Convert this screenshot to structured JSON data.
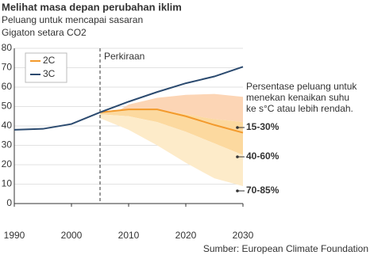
{
  "chart_data": {
    "type": "line",
    "title": "Melihat masa depan perubahan iklim",
    "subtitle": "Peluang untuk mencapai sasaran",
    "y_label": "Gigaton setara CO2",
    "forecast_label": "Perkiraan",
    "forecast_x": 2005,
    "annotation": [
      "Persentase peluang untuk",
      "menekan kenaikan suhu",
      "ke s°C atau lebih rendah."
    ],
    "source": "Sumber: European Climate Foundation",
    "xlim": [
      1990,
      2030
    ],
    "xticks": [
      1990,
      2000,
      2010,
      2020,
      2030
    ],
    "ylim": [
      0,
      80
    ],
    "yticks": [
      0,
      10,
      20,
      30,
      40,
      50,
      60,
      70,
      80
    ],
    "grid": true,
    "legend": "upper left",
    "series": [
      {
        "name": "2C",
        "color": "#f39a2c",
        "x": [
          2005,
          2010,
          2015,
          2020,
          2025,
          2030
        ],
        "values": [
          47,
          48.5,
          48.5,
          45,
          40.5,
          36.5
        ]
      },
      {
        "name": "3C",
        "color": "#2b4a6f",
        "x": [
          1990,
          1995,
          2000,
          2005,
          2010,
          2015,
          2020,
          2025,
          2030
        ],
        "values": [
          38,
          38.5,
          41,
          47,
          52.5,
          57.5,
          62,
          65.5,
          70.5
        ]
      }
    ],
    "bands": [
      {
        "name": "15-30%",
        "color": "#fcd5b5",
        "x": [
          2008,
          2010,
          2015,
          2020,
          2025,
          2030
        ],
        "upper": [
          47.5,
          51,
          54.5,
          56,
          56.5,
          55
        ],
        "lower": [
          47.5,
          48.5,
          48.5,
          46,
          43.5,
          42
        ]
      },
      {
        "name": "40-60%",
        "color": "#fcd99f",
        "x": [
          2005,
          2010,
          2015,
          2020,
          2025,
          2030
        ],
        "upper": [
          47,
          48.5,
          48.5,
          46,
          43.5,
          42
        ],
        "lower": [
          46,
          45,
          42,
          37,
          31,
          25
        ]
      },
      {
        "name": "70-85%",
        "color": "#fdebc9",
        "x": [
          2005,
          2010,
          2015,
          2020,
          2025,
          2030
        ],
        "upper": [
          46,
          45,
          42,
          37,
          31,
          25
        ],
        "lower": [
          44,
          38,
          30,
          21,
          13,
          9
        ]
      }
    ]
  }
}
